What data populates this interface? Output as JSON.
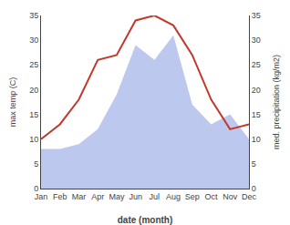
{
  "chart_data": {
    "type": "line",
    "categories": [
      "Jan",
      "Feb",
      "Mar",
      "Apr",
      "May",
      "Jun",
      "Jul",
      "Aug",
      "Sep",
      "Oct",
      "Nov",
      "Dec"
    ],
    "series": [
      {
        "type": "line",
        "color": "#c0392b",
        "values": [
          10,
          13,
          18,
          26,
          27,
          34,
          35,
          33,
          27,
          18,
          12,
          13
        ]
      },
      {
        "type": "area",
        "color": "#bdc8ee",
        "axis": "y2",
        "values": [
          8,
          8,
          9,
          12,
          19,
          29,
          26,
          31,
          17,
          13,
          15,
          10
        ]
      }
    ],
    "xlabel": "date (month)",
    "ylabel": "max temp (C)",
    "y2label": "med. precipitation (kg/m2)",
    "ylim": [
      0,
      35
    ],
    "yticks": [
      0,
      5,
      10,
      15,
      20,
      25,
      30,
      35
    ],
    "y2lim": [
      0,
      35
    ],
    "y2ticks": [
      0,
      5,
      10,
      15,
      20,
      25,
      30,
      35
    ],
    "grid": false
  }
}
